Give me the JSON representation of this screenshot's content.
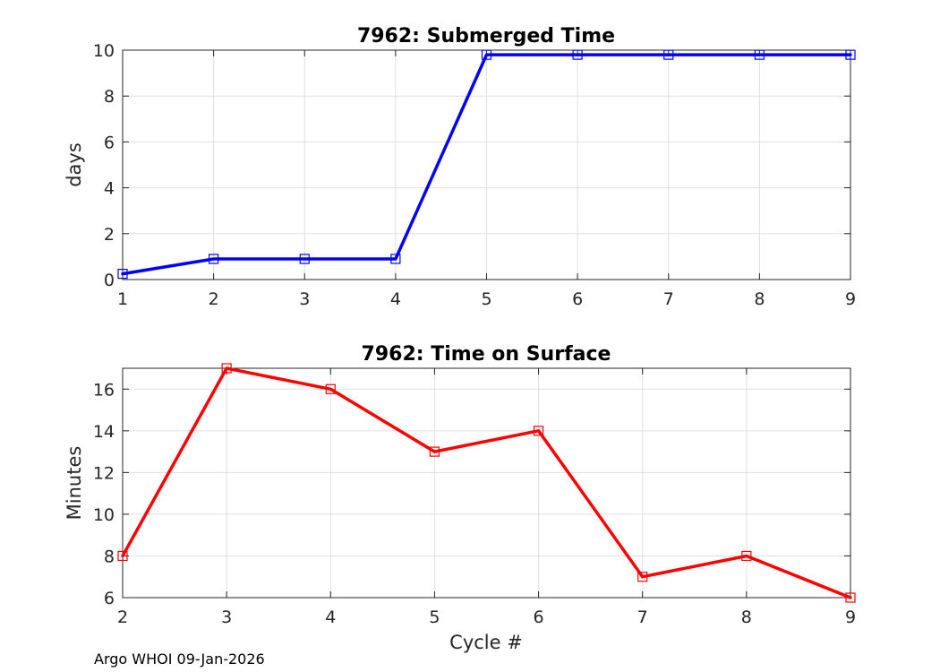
{
  "chart_data": [
    {
      "type": "line",
      "title": "7962: Submerged Time",
      "xlabel": "",
      "ylabel": "days",
      "xlim": [
        1,
        9
      ],
      "ylim": [
        0,
        10
      ],
      "xticks": [
        1,
        2,
        3,
        4,
        5,
        6,
        7,
        8,
        9
      ],
      "yticks": [
        0,
        2,
        4,
        6,
        8,
        10
      ],
      "grid": true,
      "series": [
        {
          "name": "Submerged Time",
          "color": "#0000ff",
          "marker": "square",
          "x": [
            1,
            2,
            3,
            4,
            5,
            6,
            7,
            8,
            9
          ],
          "y": [
            0.25,
            0.9,
            0.9,
            0.9,
            9.8,
            9.8,
            9.8,
            9.8,
            9.8
          ]
        }
      ]
    },
    {
      "type": "line",
      "title": "7962: Time on Surface",
      "xlabel": "Cycle #",
      "ylabel": "Minutes",
      "xlim": [
        2,
        9
      ],
      "ylim": [
        6,
        17
      ],
      "xticks": [
        2,
        3,
        4,
        5,
        6,
        7,
        8,
        9
      ],
      "yticks": [
        6,
        8,
        10,
        12,
        14,
        16
      ],
      "grid": true,
      "series": [
        {
          "name": "Time on Surface",
          "color": "#ff0000",
          "marker": "square",
          "x": [
            2,
            3,
            4,
            5,
            6,
            7,
            8,
            9
          ],
          "y": [
            8,
            17,
            16,
            13,
            14,
            7,
            8,
            6
          ]
        }
      ]
    }
  ],
  "footer": "Argo WHOI 09-Jan-2026"
}
